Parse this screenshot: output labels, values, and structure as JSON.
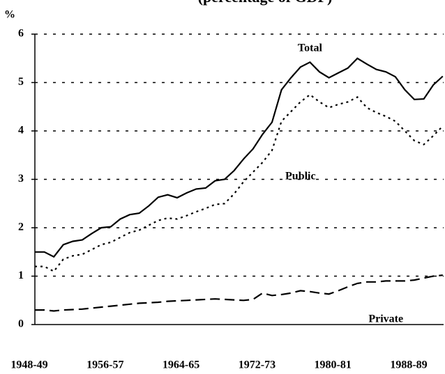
{
  "chart_data": {
    "type": "line",
    "title": "(percentage of GDP)",
    "y_label": "%",
    "categories": [
      "1948-49",
      null,
      null,
      null,
      null,
      null,
      null,
      null,
      "1956-57",
      null,
      null,
      null,
      null,
      null,
      null,
      null,
      "1964-65",
      null,
      null,
      null,
      null,
      null,
      null,
      null,
      "1972-73",
      null,
      null,
      null,
      null,
      null,
      null,
      null,
      "1980-81",
      null,
      null,
      null,
      null,
      null,
      null,
      null,
      "1988-89",
      null,
      null,
      null
    ],
    "series": [
      {
        "name": "Total",
        "color": "#000000",
        "dash": "solid",
        "values": [
          1.5,
          1.5,
          1.4,
          1.65,
          1.72,
          1.75,
          1.88,
          2.0,
          2.02,
          2.18,
          2.27,
          2.3,
          2.45,
          2.63,
          2.68,
          2.62,
          2.72,
          2.8,
          2.82,
          2.97,
          3.0,
          3.18,
          3.42,
          3.63,
          3.93,
          4.18,
          4.85,
          5.1,
          5.32,
          5.42,
          5.22,
          5.1,
          5.2,
          5.3,
          5.5,
          5.38,
          5.27,
          5.22,
          5.12,
          4.85,
          4.65,
          4.66,
          4.95,
          5.13
        ]
      },
      {
        "name": "Public",
        "color": "#000000",
        "dash": "dotted",
        "values": [
          1.2,
          1.2,
          1.1,
          1.35,
          1.42,
          1.45,
          1.55,
          1.65,
          1.7,
          1.8,
          1.9,
          1.95,
          2.05,
          2.15,
          2.2,
          2.18,
          2.25,
          2.33,
          2.4,
          2.48,
          2.5,
          2.7,
          2.95,
          3.15,
          3.35,
          3.6,
          4.2,
          4.4,
          4.6,
          4.75,
          4.6,
          4.48,
          4.55,
          4.6,
          4.7,
          4.48,
          4.38,
          4.3,
          4.2,
          4.0,
          3.8,
          3.72,
          3.9,
          4.1
        ]
      },
      {
        "name": "Private",
        "color": "#000000",
        "dash": "dashed",
        "values": [
          0.3,
          0.3,
          0.28,
          0.3,
          0.31,
          0.32,
          0.34,
          0.36,
          0.38,
          0.4,
          0.42,
          0.44,
          0.45,
          0.46,
          0.48,
          0.49,
          0.5,
          0.51,
          0.52,
          0.53,
          0.52,
          0.51,
          0.5,
          0.52,
          0.65,
          0.6,
          0.62,
          0.65,
          0.7,
          0.68,
          0.65,
          0.63,
          0.7,
          0.78,
          0.85,
          0.88,
          0.88,
          0.9,
          0.9,
          0.9,
          0.92,
          0.96,
          1.0,
          1.02
        ]
      }
    ],
    "ylim": [
      0,
      6
    ],
    "yticks": [
      0,
      1,
      2,
      3,
      4,
      5,
      6
    ],
    "grid": true
  }
}
